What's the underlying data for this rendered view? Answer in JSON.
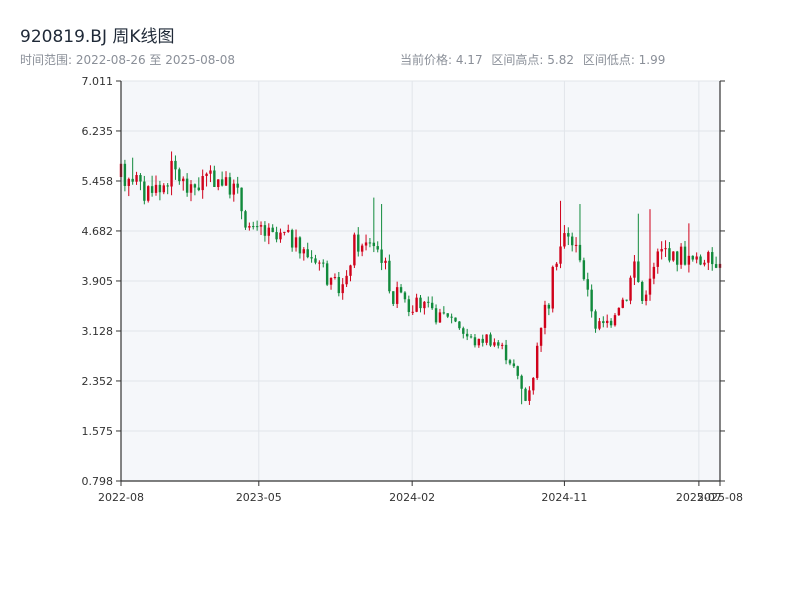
{
  "header": {
    "title": "920819.BJ 周K线图",
    "range_text": "时间范围: 2022-08-26 至 2025-08-08",
    "current_price_text": "当前价格: 4.17",
    "high_text": "区间高点: 5.82",
    "low_text": "区间低点: 1.99"
  },
  "colors": {
    "up": "#d0021b",
    "down": "#118a3c",
    "plot_bg": "#f5f7fa",
    "grid": "#e1e5ea",
    "axis": "#333333"
  },
  "chart_data": {
    "type": "candlestick",
    "title": "920819.BJ 周K线图",
    "xlabel": "",
    "ylabel": "",
    "grid": true,
    "ylim": [
      0.798,
      7.011
    ],
    "y_ticks": [
      "0.798",
      "1.575",
      "2.352",
      "3.128",
      "3.905",
      "4.682",
      "5.458",
      "6.235",
      "7.011"
    ],
    "x_range": [
      "2022-08-26",
      "2025-08-08"
    ],
    "x_ticks": [
      {
        "label": "2022-08",
        "date": "2022-08-26"
      },
      {
        "label": "2023-05",
        "date": "2023-05-01"
      },
      {
        "label": "2024-02",
        "date": "2024-02-01"
      },
      {
        "label": "2024-11",
        "date": "2024-11-01"
      },
      {
        "label": "2025-07",
        "date": "2025-07-01"
      },
      {
        "label": "2025-08",
        "date": "2025-08-08"
      }
    ],
    "shape_points": [
      [
        "2022-08-26",
        5.52
      ],
      [
        "2022-09-09",
        5.6
      ],
      [
        "2022-09-23",
        5.5
      ],
      [
        "2022-10-07",
        5.25
      ],
      [
        "2022-10-21",
        5.42
      ],
      [
        "2022-11-04",
        5.3
      ],
      [
        "2022-11-18",
        5.55
      ],
      [
        "2022-12-02",
        5.6
      ],
      [
        "2022-12-16",
        5.42
      ],
      [
        "2022-12-30",
        5.32
      ],
      [
        "2023-01-13",
        5.45
      ],
      [
        "2023-01-27",
        5.5
      ],
      [
        "2023-02-10",
        5.55
      ],
      [
        "2023-02-24",
        5.45
      ],
      [
        "2023-03-10",
        5.38
      ],
      [
        "2023-03-24",
        5.25
      ],
      [
        "2023-04-07",
        4.82
      ],
      [
        "2023-04-21",
        4.65
      ],
      [
        "2023-05-05",
        4.72
      ],
      [
        "2023-05-19",
        4.6
      ],
      [
        "2023-06-02",
        4.55
      ],
      [
        "2023-06-16",
        4.6
      ],
      [
        "2023-06-30",
        4.55
      ],
      [
        "2023-07-14",
        4.4
      ],
      [
        "2023-07-28",
        4.32
      ],
      [
        "2023-08-11",
        4.25
      ],
      [
        "2023-08-25",
        4.15
      ],
      [
        "2023-09-08",
        3.85
      ],
      [
        "2023-09-22",
        3.78
      ],
      [
        "2023-10-06",
        3.9
      ],
      [
        "2023-10-20",
        4.5
      ],
      [
        "2023-11-03",
        4.4
      ],
      [
        "2023-11-17",
        4.55
      ],
      [
        "2023-12-01",
        4.4
      ],
      [
        "2023-12-15",
        4.1
      ],
      [
        "2023-12-29",
        3.6
      ],
      [
        "2024-01-12",
        3.85
      ],
      [
        "2024-01-26",
        3.5
      ],
      [
        "2024-02-09",
        3.55
      ],
      [
        "2024-02-23",
        3.48
      ],
      [
        "2024-03-08",
        3.4
      ],
      [
        "2024-03-22",
        3.35
      ],
      [
        "2024-04-05",
        3.38
      ],
      [
        "2024-04-19",
        3.3
      ],
      [
        "2024-05-03",
        3.1
      ],
      [
        "2024-05-17",
        3.0
      ],
      [
        "2024-05-31",
        2.95
      ],
      [
        "2024-06-14",
        3.05
      ],
      [
        "2024-06-28",
        2.98
      ],
      [
        "2024-07-12",
        2.85
      ],
      [
        "2024-07-26",
        2.7
      ],
      [
        "2024-08-09",
        2.4
      ],
      [
        "2024-08-23",
        2.05
      ],
      [
        "2024-09-06",
        2.45
      ],
      [
        "2024-09-20",
        3.3
      ],
      [
        "2024-10-04",
        3.6
      ],
      [
        "2024-10-18",
        4.3
      ],
      [
        "2024-11-01",
        4.6
      ],
      [
        "2024-11-15",
        4.5
      ],
      [
        "2024-11-29",
        4.3
      ],
      [
        "2024-12-13",
        3.7
      ],
      [
        "2024-12-27",
        3.25
      ],
      [
        "2025-01-10",
        3.2
      ],
      [
        "2025-01-24",
        3.35
      ],
      [
        "2025-02-07",
        3.55
      ],
      [
        "2025-02-21",
        3.7
      ],
      [
        "2025-03-07",
        4.2
      ],
      [
        "2025-03-21",
        3.6
      ],
      [
        "2025-04-04",
        3.9
      ],
      [
        "2025-04-18",
        4.3
      ],
      [
        "2025-05-02",
        4.4
      ],
      [
        "2025-05-16",
        4.25
      ],
      [
        "2025-05-30",
        4.35
      ],
      [
        "2025-06-13",
        4.25
      ],
      [
        "2025-06-27",
        4.2
      ],
      [
        "2025-07-11",
        4.25
      ],
      [
        "2025-07-25",
        4.2
      ],
      [
        "2025-08-08",
        4.17
      ]
    ],
    "spikes": [
      {
        "date": "2022-09-16",
        "high": 5.82
      },
      {
        "date": "2023-11-24",
        "high": 5.2
      },
      {
        "date": "2023-12-08",
        "high": 5.1
      },
      {
        "date": "2024-10-25",
        "high": 5.15
      },
      {
        "date": "2024-11-29",
        "high": 5.1
      },
      {
        "date": "2025-03-14",
        "high": 4.95
      },
      {
        "date": "2025-04-04",
        "high": 5.02
      },
      {
        "date": "2025-06-13",
        "high": 4.8
      }
    ],
    "lows": [
      {
        "date": "2024-08-16",
        "low": 1.99
      },
      {
        "date": "2024-08-30",
        "low": 2.0
      }
    ],
    "last_close": 4.17,
    "period_high": 5.82,
    "period_low": 1.99
  }
}
